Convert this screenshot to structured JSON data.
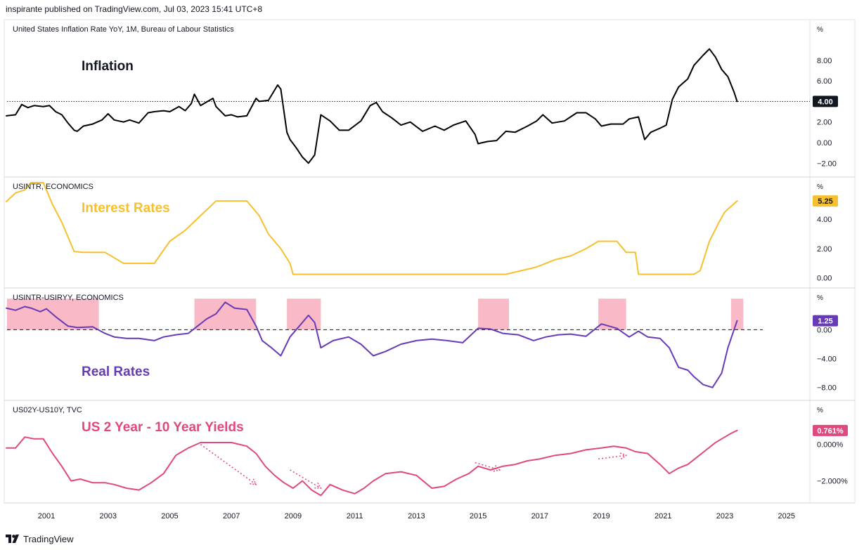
{
  "header": {
    "published": "inspirante published on TradingView.com, Jul 03, 2023 15:41 UTC+8"
  },
  "footer": {
    "brand": "TradingView",
    "logo_icon": "tradingview-logo-icon"
  },
  "x_axis": {
    "ticks": [
      "2001",
      "2003",
      "2005",
      "2007",
      "2009",
      "2011",
      "2013",
      "2015",
      "2017",
      "2019",
      "2021",
      "2023",
      "2025"
    ]
  },
  "colors": {
    "inflation": "#000000",
    "interest": "#f6c02f",
    "real": "#673ab7",
    "yields": "#e04880",
    "highlight": "#f7a8b8"
  },
  "chart_data": [
    {
      "type": "line",
      "pane_title": "United States Inflation Rate YoY, 1M, Bureau of Labour Statistics",
      "label": "Inflation",
      "unit": "%",
      "ylim": [
        -2.8,
        11.4
      ],
      "yticks": [
        "8.00",
        "6.00",
        "4.00",
        "2.00",
        "0.00",
        "−2.00"
      ],
      "ytick_values": [
        8,
        6,
        4,
        2,
        0,
        -2
      ],
      "last_value": "4.00",
      "reference_line": 4.0,
      "series": [
        {
          "x": [
            1999.7,
            2000.0,
            2000.2,
            2000.4,
            2000.6,
            2000.9,
            2001.1,
            2001.3,
            2001.5,
            2001.7,
            2001.9,
            2002.0,
            2002.2,
            2002.5,
            2002.8,
            2003.0,
            2003.2,
            2003.5,
            2003.7,
            2004.0,
            2004.3,
            2004.5,
            2004.8,
            2005.0,
            2005.3,
            2005.5,
            2005.7,
            2005.8,
            2006.0,
            2006.4,
            2006.5,
            2006.8,
            2007.0,
            2007.2,
            2007.5,
            2007.8,
            2007.9,
            2008.2,
            2008.5,
            2008.6,
            2008.8,
            2008.9,
            2009.1,
            2009.3,
            2009.5,
            2009.7,
            2009.9,
            2010.2,
            2010.5,
            2010.8,
            2011.2,
            2011.5,
            2011.7,
            2011.9,
            2012.2,
            2012.5,
            2012.8,
            2013.2,
            2013.6,
            2013.9,
            2014.2,
            2014.6,
            2014.9,
            2015.0,
            2015.3,
            2015.6,
            2015.9,
            2016.2,
            2016.6,
            2016.9,
            2017.1,
            2017.4,
            2017.8,
            2018.2,
            2018.5,
            2018.8,
            2019.0,
            2019.3,
            2019.7,
            2019.9,
            2020.2,
            2020.4,
            2020.6,
            2020.9,
            2021.1,
            2021.3,
            2021.5,
            2021.8,
            2022.0,
            2022.3,
            2022.5,
            2022.7,
            2022.9,
            2023.1,
            2023.3,
            2023.4
          ],
          "y": [
            2.6,
            2.7,
            3.7,
            3.4,
            3.6,
            3.5,
            3.6,
            3.0,
            2.7,
            1.9,
            1.2,
            1.1,
            1.6,
            1.8,
            2.2,
            2.8,
            2.2,
            2.0,
            2.2,
            1.9,
            2.9,
            3.0,
            3.1,
            3.0,
            3.5,
            3.1,
            3.8,
            4.7,
            3.6,
            4.3,
            3.5,
            2.6,
            2.7,
            2.5,
            2.6,
            4.3,
            4.0,
            4.1,
            5.6,
            5.2,
            1.0,
            0.3,
            -0.5,
            -1.4,
            -2.0,
            -1.2,
            2.7,
            2.1,
            1.2,
            1.2,
            2.1,
            3.6,
            3.9,
            3.0,
            2.4,
            1.7,
            2.0,
            1.1,
            1.6,
            1.2,
            1.7,
            2.1,
            0.8,
            -0.1,
            0.1,
            0.2,
            1.1,
            1.0,
            1.6,
            2.1,
            2.7,
            1.9,
            2.1,
            2.9,
            2.9,
            2.3,
            1.6,
            1.8,
            1.8,
            2.3,
            2.5,
            0.3,
            1.0,
            1.4,
            1.7,
            4.2,
            5.4,
            6.2,
            7.5,
            8.5,
            9.1,
            8.3,
            7.1,
            6.4,
            4.9,
            4.0
          ]
        }
      ]
    },
    {
      "type": "line",
      "pane_title": "USINTR, ECONOMICS",
      "label": "Interest Rates",
      "unit": "%",
      "ylim": [
        -0.3,
        6.5
      ],
      "yticks": [
        "4.00",
        "2.00",
        "0.00"
      ],
      "ytick_values": [
        4,
        2,
        0
      ],
      "last_value": "5.25",
      "series": [
        {
          "x": [
            1999.7,
            2000.0,
            2000.3,
            2000.5,
            2000.9,
            2001.2,
            2001.5,
            2001.9,
            2002.2,
            2002.9,
            2003.5,
            2004.5,
            2005.0,
            2005.5,
            2006.0,
            2006.5,
            2007.5,
            2007.7,
            2007.9,
            2008.2,
            2008.6,
            2008.9,
            2009.0,
            2012.0,
            2015.9,
            2016.9,
            2017.5,
            2018.0,
            2018.5,
            2018.9,
            2019.5,
            2019.8,
            2020.1,
            2020.2,
            2022.0,
            2022.2,
            2022.5,
            2022.8,
            2023.0,
            2023.4
          ],
          "y": [
            5.2,
            5.8,
            6.0,
            6.5,
            6.5,
            5.0,
            3.8,
            1.8,
            1.75,
            1.75,
            1.0,
            1.0,
            2.5,
            3.25,
            4.25,
            5.25,
            5.25,
            4.75,
            4.25,
            3.0,
            2.0,
            1.0,
            0.25,
            0.25,
            0.25,
            0.75,
            1.25,
            1.5,
            2.0,
            2.5,
            2.5,
            1.75,
            1.75,
            0.25,
            0.25,
            0.5,
            2.5,
            3.75,
            4.5,
            5.25
          ]
        }
      ]
    },
    {
      "type": "line",
      "pane_title": "USINTR-USIRYY, ECONOMICS",
      "label": "Real Rates",
      "unit": "%",
      "ylim": [
        -9.0,
        5.0
      ],
      "yticks": [
        "0.00",
        "−4.00",
        "−8.00"
      ],
      "ytick_values": [
        0,
        -4,
        -8
      ],
      "last_value": "1.25",
      "reference_line": 0,
      "highlights": [
        [
          1999.7,
          2002.7
        ],
        [
          2005.8,
          2007.8
        ],
        [
          2008.8,
          2009.9
        ],
        [
          2015.0,
          2016.0
        ],
        [
          2018.9,
          2019.8
        ],
        [
          2023.2,
          2023.6
        ]
      ],
      "series": [
        {
          "x": [
            1999.7,
            2000.0,
            2000.3,
            2000.5,
            2000.8,
            2001.0,
            2001.3,
            2001.7,
            2002.0,
            2002.5,
            2002.9,
            2003.2,
            2003.6,
            2004.0,
            2004.5,
            2004.8,
            2005.2,
            2005.6,
            2005.9,
            2006.2,
            2006.5,
            2006.8,
            2007.1,
            2007.5,
            2007.8,
            2008.0,
            2008.3,
            2008.6,
            2008.9,
            2009.2,
            2009.5,
            2009.7,
            2009.9,
            2010.3,
            2010.8,
            2011.2,
            2011.6,
            2012.0,
            2012.5,
            2013.0,
            2013.5,
            2014.0,
            2014.5,
            2015.0,
            2015.4,
            2015.8,
            2016.3,
            2016.8,
            2017.2,
            2017.6,
            2018.0,
            2018.5,
            2019.0,
            2019.5,
            2019.9,
            2020.2,
            2020.5,
            2020.9,
            2021.2,
            2021.5,
            2021.8,
            2022.0,
            2022.3,
            2022.6,
            2022.9,
            2023.1,
            2023.4
          ],
          "y": [
            3.0,
            2.7,
            3.2,
            3.0,
            2.5,
            2.9,
            1.8,
            0.5,
            0.3,
            0.4,
            -0.5,
            -1.0,
            -1.2,
            -1.2,
            -1.5,
            -1.0,
            -0.7,
            -0.5,
            0.5,
            1.5,
            2.2,
            3.8,
            3.0,
            2.8,
            0.5,
            -1.5,
            -2.5,
            -3.6,
            -1.0,
            0.5,
            2.0,
            1.0,
            -2.5,
            -1.5,
            -1.0,
            -2.0,
            -3.6,
            -3.0,
            -2.0,
            -1.5,
            -1.3,
            -1.5,
            -1.8,
            0.2,
            0.1,
            -0.5,
            -0.7,
            -1.5,
            -1.0,
            -0.7,
            -0.6,
            -0.9,
            0.8,
            0.2,
            -1.0,
            -0.2,
            -1.0,
            -1.2,
            -2.5,
            -5.2,
            -5.6,
            -6.5,
            -7.6,
            -8.0,
            -6.0,
            -2.5,
            1.25
          ]
        }
      ]
    },
    {
      "type": "line",
      "pane_title": "US02Y-US10Y, TVC",
      "label": "US 2 Year - 10 Year Yields",
      "unit": "%",
      "ylim": [
        -2.9,
        2.1
      ],
      "yticks": [
        "0.000%",
        "−2.000%"
      ],
      "ytick_values": [
        0,
        -2
      ],
      "last_value": "0.761%",
      "series": [
        {
          "x": [
            1999.7,
            2000.0,
            2000.3,
            2000.6,
            2000.9,
            2001.2,
            2001.5,
            2001.8,
            2002.1,
            2002.5,
            2002.9,
            2003.2,
            2003.6,
            2004.0,
            2004.4,
            2004.8,
            2005.2,
            2005.6,
            2006.0,
            2006.5,
            2007.0,
            2007.5,
            2007.8,
            2008.1,
            2008.4,
            2008.7,
            2009.0,
            2009.3,
            2009.6,
            2009.9,
            2010.2,
            2010.6,
            2011.0,
            2011.3,
            2011.6,
            2012.0,
            2012.5,
            2013.0,
            2013.5,
            2013.9,
            2014.3,
            2014.7,
            2015.0,
            2015.4,
            2015.8,
            2016.2,
            2016.6,
            2017.0,
            2017.5,
            2018.0,
            2018.5,
            2019.0,
            2019.4,
            2019.8,
            2020.1,
            2020.5,
            2020.9,
            2021.2,
            2021.5,
            2021.8,
            2022.1,
            2022.4,
            2022.7,
            2023.0,
            2023.2,
            2023.4
          ],
          "y": [
            -0.2,
            -0.2,
            0.4,
            0.3,
            0.3,
            -0.5,
            -1.2,
            -2.0,
            -1.9,
            -2.1,
            -2.1,
            -2.2,
            -2.4,
            -2.5,
            -2.1,
            -1.6,
            -0.6,
            -0.2,
            0.1,
            0.1,
            0.1,
            -0.1,
            -0.5,
            -1.2,
            -1.7,
            -2.1,
            -2.4,
            -2.0,
            -2.5,
            -2.8,
            -2.2,
            -2.5,
            -2.7,
            -2.4,
            -2.0,
            -1.6,
            -1.5,
            -1.7,
            -2.4,
            -2.3,
            -1.9,
            -1.6,
            -1.2,
            -1.4,
            -1.2,
            -1.1,
            -0.9,
            -0.8,
            -0.6,
            -0.5,
            -0.3,
            -0.2,
            -0.1,
            -0.2,
            -0.4,
            -0.5,
            -1.1,
            -1.6,
            -1.3,
            -1.1,
            -0.7,
            -0.3,
            0.1,
            0.4,
            0.6,
            0.761
          ]
        }
      ]
    }
  ]
}
